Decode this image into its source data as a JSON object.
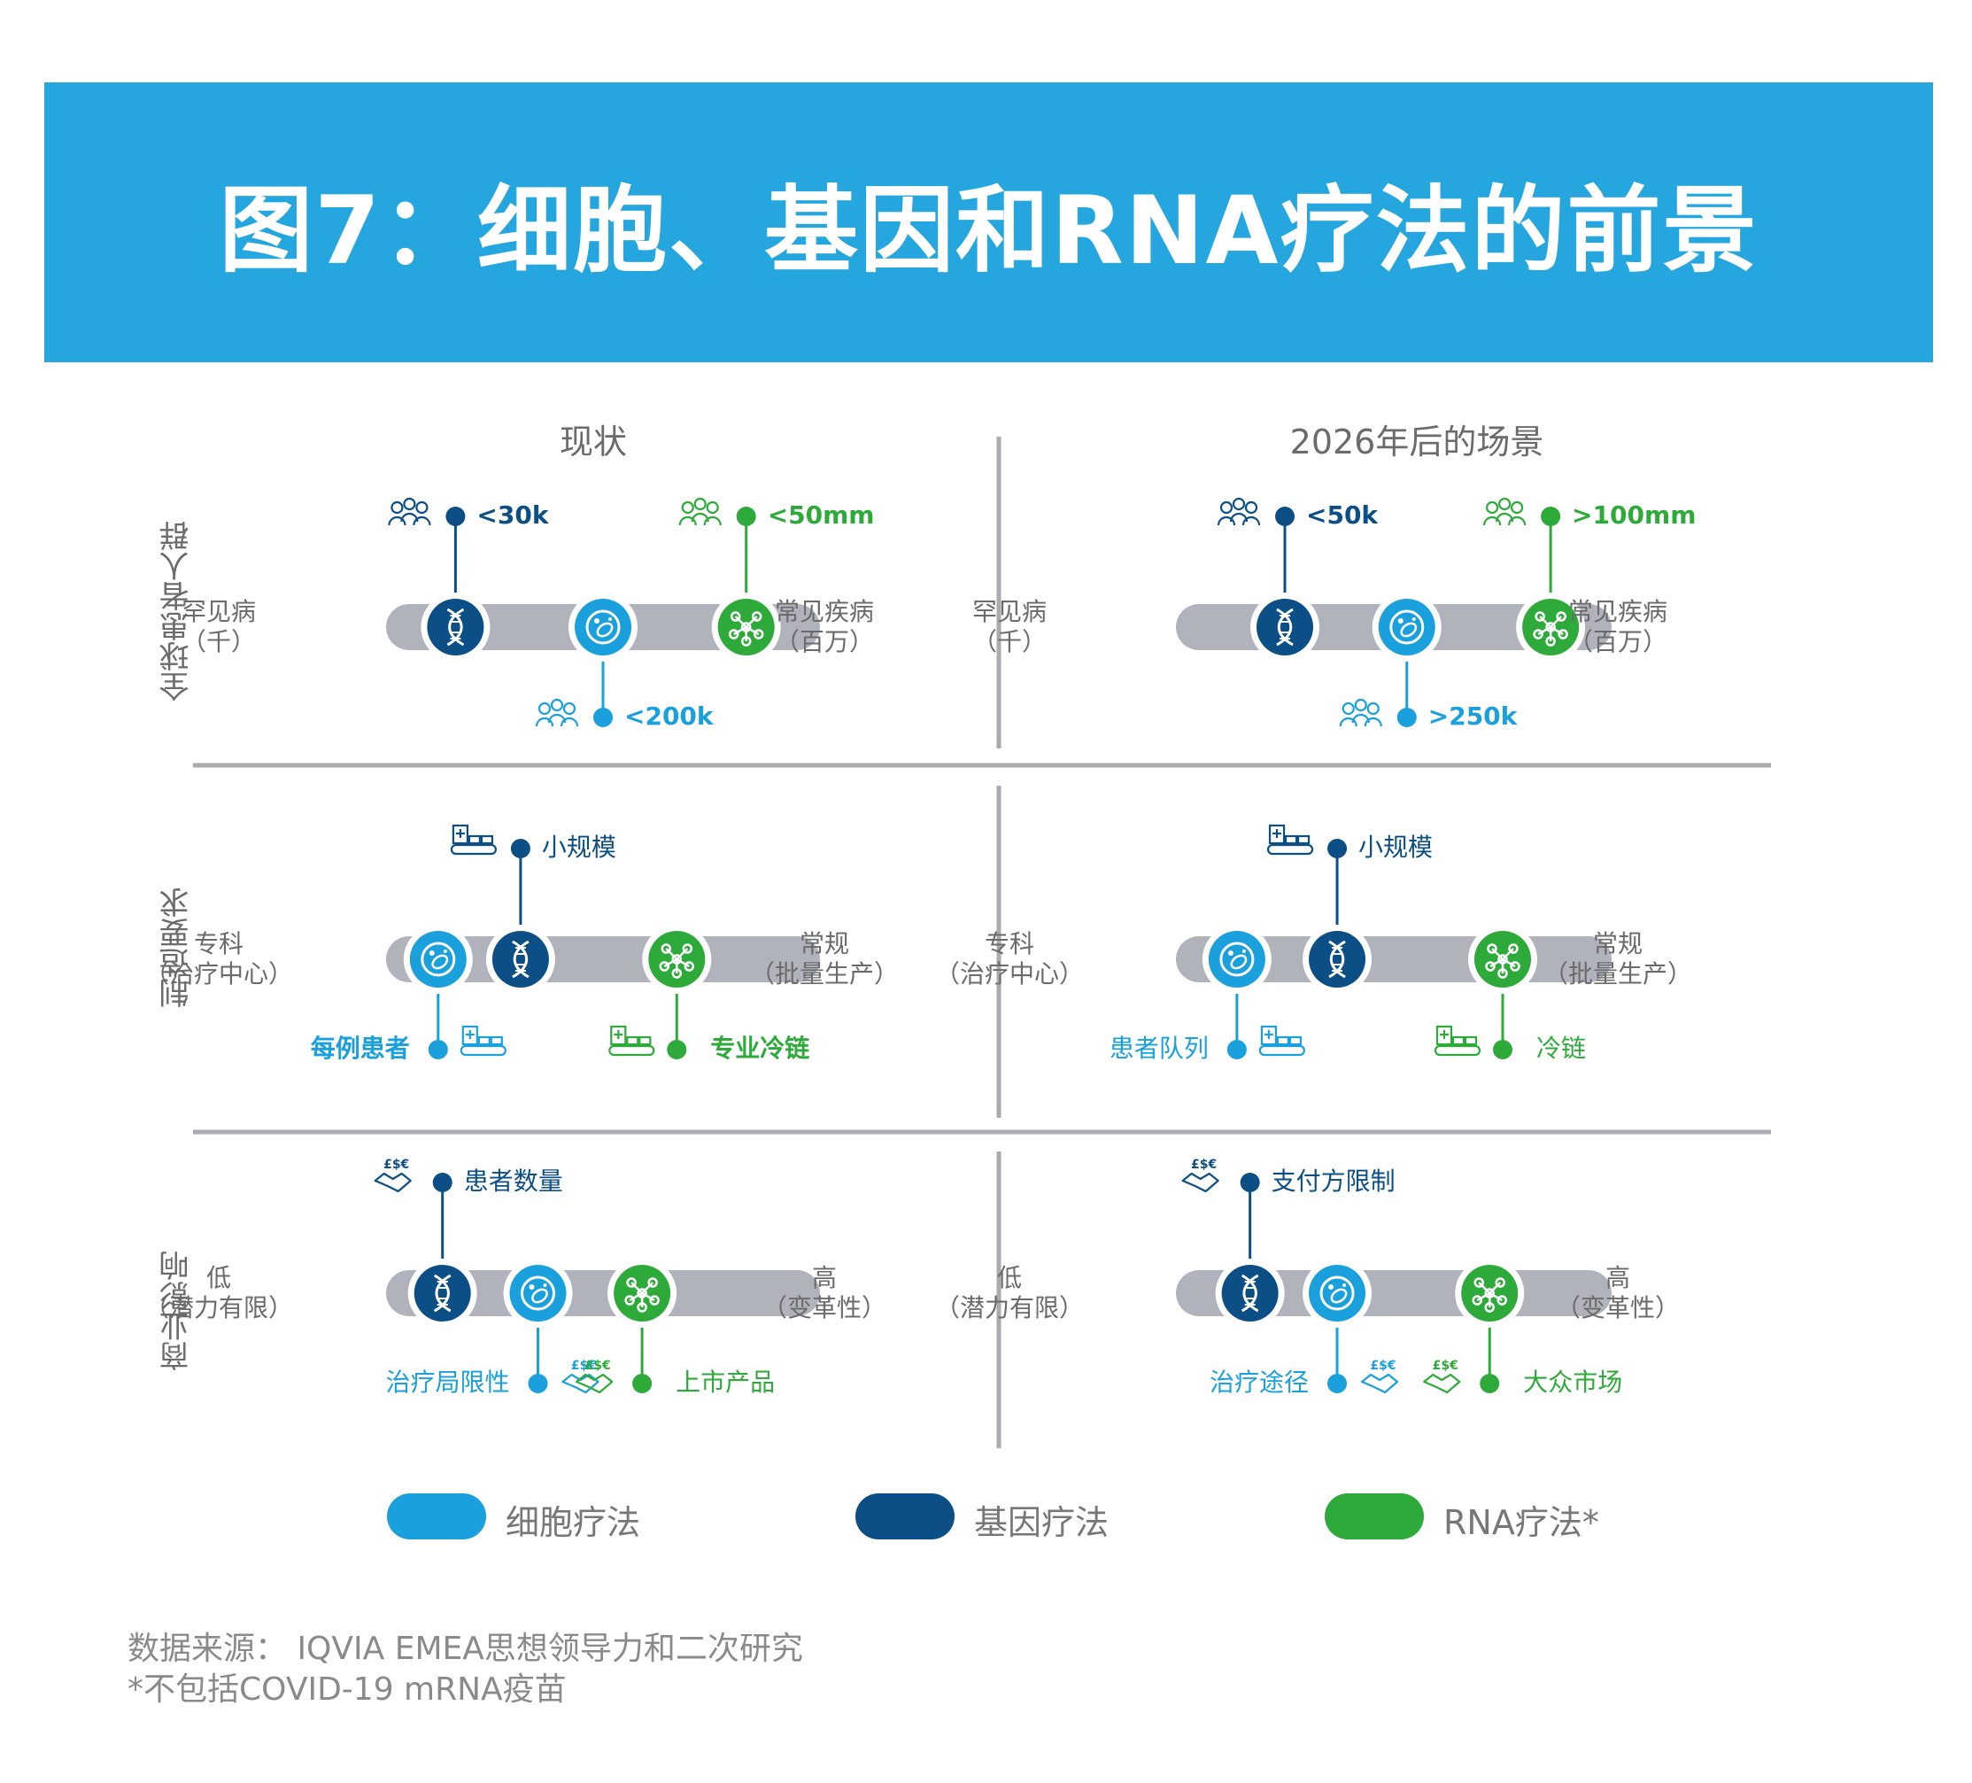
{
  "title": "图7：细胞、基因和RNA疗法的前景",
  "columns": [
    "现状",
    "2026年后的场景"
  ],
  "rows": [
    "全球患者人群",
    "制造要求",
    "商业影响"
  ],
  "colors": {
    "cell": "#1aa0dc",
    "gene": "#0b4f86",
    "rna": "#2eaa3a",
    "track": "#b1b3bc",
    "banner": "#25a6df"
  },
  "icons": {
    "cell": "cell-circle-icon",
    "gene": "dna-helix-icon",
    "rna": "molecule-network-icon",
    "people": "people-group-icon",
    "factory": "factory-conveyor-icon",
    "money": "money-handshake-icon"
  },
  "panels": [
    {
      "row": 0,
      "col": 0,
      "left": "罕见病\n（千）",
      "right": "常见疾病\n（百万）",
      "nodes": [
        {
          "type": "gene",
          "pos": 0.16
        },
        {
          "type": "cell",
          "pos": 0.5
        },
        {
          "type": "rna",
          "pos": 0.83
        }
      ],
      "callouts": [
        {
          "type": "gene",
          "dir": "up",
          "label": "<30k",
          "icon": "people",
          "bold": true
        },
        {
          "type": "rna",
          "dir": "up",
          "label": "<50mm",
          "icon": "people",
          "bold": true
        },
        {
          "type": "cell",
          "dir": "down",
          "label": "<200k",
          "icon": "people",
          "bold": true
        }
      ]
    },
    {
      "row": 0,
      "col": 1,
      "left": "罕见病\n（千）",
      "right": "常见疾病\n（百万）",
      "nodes": [
        {
          "type": "gene",
          "pos": 0.25
        },
        {
          "type": "cell",
          "pos": 0.53
        },
        {
          "type": "rna",
          "pos": 0.86
        }
      ],
      "callouts": [
        {
          "type": "gene",
          "dir": "up",
          "label": "<50k",
          "icon": "people",
          "bold": true
        },
        {
          "type": "rna",
          "dir": "up",
          "label": ">100mm",
          "icon": "people",
          "bold": true
        },
        {
          "type": "cell",
          "dir": "down",
          "label": ">250k",
          "icon": "people",
          "bold": true
        }
      ]
    },
    {
      "row": 1,
      "col": 0,
      "left": "专科\n（治疗中心）",
      "right": "常规\n（批量生产）",
      "nodes": [
        {
          "type": "cell",
          "pos": 0.12
        },
        {
          "type": "gene",
          "pos": 0.31
        },
        {
          "type": "rna",
          "pos": 0.67
        }
      ],
      "callouts": [
        {
          "type": "gene",
          "dir": "up",
          "label": "小规模",
          "icon": "factory",
          "bold": false
        },
        {
          "type": "cell",
          "dir": "down",
          "label": "每例患者",
          "icon": "factory",
          "bold": true,
          "labelSide": "left"
        },
        {
          "type": "rna",
          "dir": "down",
          "label": "专业冷链",
          "icon": "factory",
          "bold": true
        }
      ]
    },
    {
      "row": 1,
      "col": 1,
      "left": "专科\n（治疗中心）",
      "right": "常规\n（批量生产）",
      "nodes": [
        {
          "type": "cell",
          "pos": 0.14
        },
        {
          "type": "gene",
          "pos": 0.37
        },
        {
          "type": "rna",
          "pos": 0.75
        }
      ],
      "callouts": [
        {
          "type": "gene",
          "dir": "up",
          "label": "小规模",
          "icon": "factory",
          "bold": false
        },
        {
          "type": "cell",
          "dir": "down",
          "label": "患者队列",
          "icon": "factory",
          "bold": false,
          "labelSide": "left"
        },
        {
          "type": "rna",
          "dir": "down",
          "label": "冷链",
          "icon": "factory",
          "bold": false
        }
      ]
    },
    {
      "row": 2,
      "col": 0,
      "left": "低\n（潜力有限）",
      "right": "高\n（变革性）",
      "nodes": [
        {
          "type": "gene",
          "pos": 0.13
        },
        {
          "type": "cell",
          "pos": 0.35
        },
        {
          "type": "rna",
          "pos": 0.59
        }
      ],
      "callouts": [
        {
          "type": "gene",
          "dir": "up",
          "label": "患者数量",
          "icon": "money",
          "bold": false
        },
        {
          "type": "cell",
          "dir": "down",
          "label": "治疗局限性",
          "icon": "money",
          "bold": false,
          "labelSide": "left"
        },
        {
          "type": "rna",
          "dir": "down",
          "label": "上市产品",
          "icon": "money",
          "bold": false
        }
      ]
    },
    {
      "row": 2,
      "col": 1,
      "left": "低\n（潜力有限）",
      "right": "高\n（变革性）",
      "nodes": [
        {
          "type": "gene",
          "pos": 0.17
        },
        {
          "type": "cell",
          "pos": 0.37
        },
        {
          "type": "rna",
          "pos": 0.72
        }
      ],
      "callouts": [
        {
          "type": "gene",
          "dir": "up",
          "label": "支付方限制",
          "icon": "money",
          "bold": false
        },
        {
          "type": "cell",
          "dir": "down",
          "label": "治疗途径",
          "icon": "money",
          "bold": false,
          "labelSide": "left"
        },
        {
          "type": "rna",
          "dir": "down",
          "label": "大众市场",
          "icon": "money",
          "bold": false
        }
      ]
    }
  ],
  "legend": [
    {
      "type": "cell",
      "label": "细胞疗法"
    },
    {
      "type": "gene",
      "label": "基因疗法"
    },
    {
      "type": "rna",
      "label": "RNA疗法*"
    }
  ],
  "source_line1": "数据来源： IQVIA EMEA思想领导力和二次研究",
  "source_line2": "*不包括COVID-19 mRNA疫苗"
}
